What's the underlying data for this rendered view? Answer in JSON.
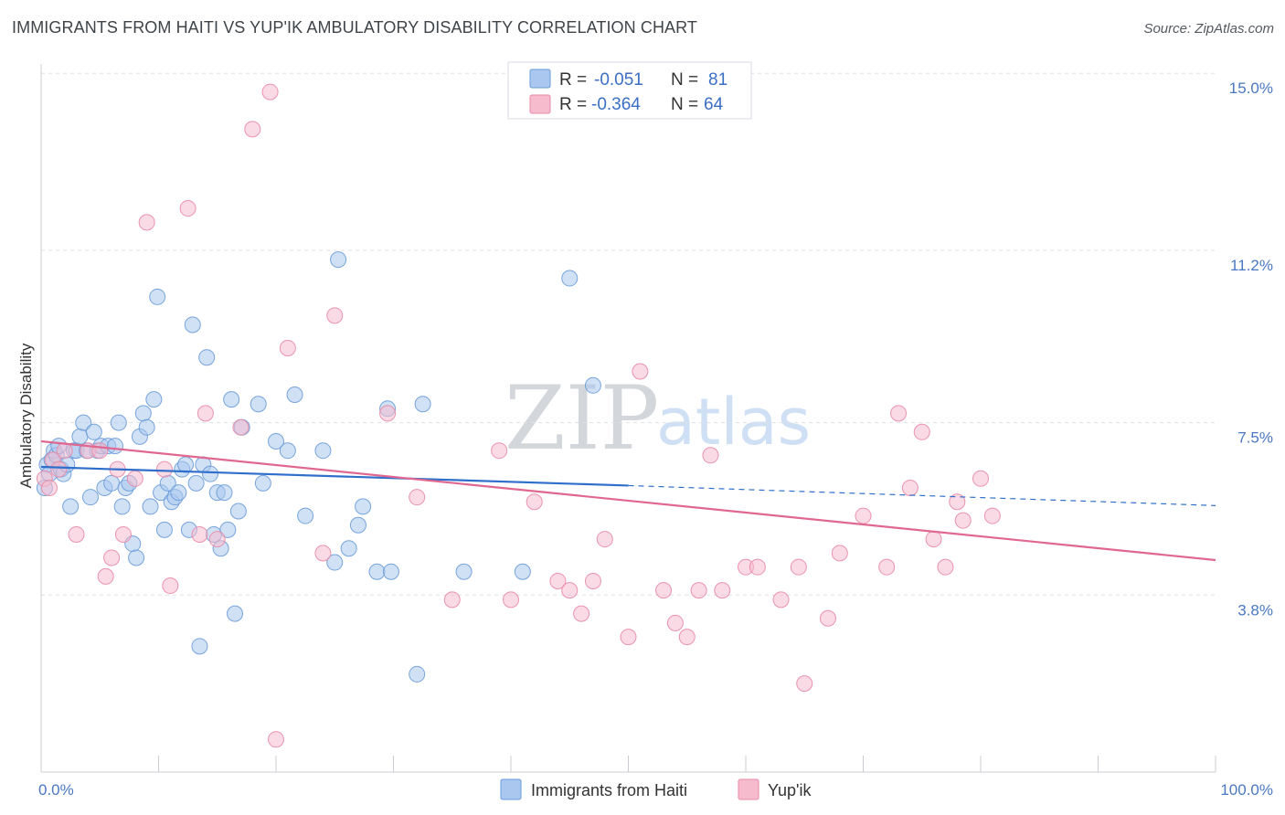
{
  "header": {
    "title": "IMMIGRANTS FROM HAITI VS YUP'IK AMBULATORY DISABILITY CORRELATION CHART",
    "source": "Source: ZipAtlas.com"
  },
  "watermark": {
    "zip": "ZIP",
    "atlas": "atlas"
  },
  "colors": {
    "blue_fill": "#aac8ef",
    "blue_stroke": "#6a9bd8",
    "blue_line": "#2f6fcb",
    "pink_fill": "#f6bccd",
    "pink_stroke": "#e88aa6",
    "pink_line": "#e06890",
    "grid": "#dde1e6",
    "axis_label": "#4a78c2"
  },
  "legend": {
    "rows": [
      {
        "r_label": "R = ",
        "r_value": "-0.051",
        "n_label": "N = ",
        "n_value": "81"
      },
      {
        "r_label": "R = ",
        "r_value": "-0.364",
        "n_label": "N = ",
        "n_value": "64"
      }
    ]
  },
  "chart_data": {
    "type": "scatter",
    "title": "IMMIGRANTS FROM HAITI VS YUP'IK AMBULATORY DISABILITY CORRELATION CHART",
    "xlabel": "",
    "ylabel": "Ambulatory Disability",
    "xlim": [
      0,
      100
    ],
    "ylim": [
      0,
      15.2
    ],
    "x_tick_labels": [
      "0.0%",
      "100.0%"
    ],
    "y_ticks": [
      {
        "value": 3.8,
        "label": "3.8%"
      },
      {
        "value": 7.5,
        "label": "7.5%"
      },
      {
        "value": 11.2,
        "label": "11.2%"
      },
      {
        "value": 15.0,
        "label": "15.0%"
      }
    ],
    "grid": true,
    "legend_position": "top-center",
    "series": [
      {
        "name": "Immigrants from Haiti",
        "color": "#aac8ef",
        "trend": {
          "x_start": 0,
          "y_start": 6.55,
          "x_end": 50,
          "y_end": 6.15,
          "dashed_to_x": 100,
          "dashed_to_y": 5.72
        },
        "points": [
          [
            0.3,
            6.1
          ],
          [
            0.5,
            6.6
          ],
          [
            0.7,
            6.4
          ],
          [
            0.9,
            6.7
          ],
          [
            1.1,
            6.9
          ],
          [
            1.3,
            6.8
          ],
          [
            1.5,
            7.0
          ],
          [
            1.7,
            6.5
          ],
          [
            1.9,
            6.4
          ],
          [
            2.2,
            6.6
          ],
          [
            2.5,
            5.7
          ],
          [
            2.8,
            6.9
          ],
          [
            3.0,
            6.9
          ],
          [
            3.3,
            7.2
          ],
          [
            3.6,
            7.5
          ],
          [
            3.9,
            6.9
          ],
          [
            4.2,
            5.9
          ],
          [
            4.5,
            7.3
          ],
          [
            4.8,
            6.9
          ],
          [
            5.1,
            7.0
          ],
          [
            5.4,
            6.1
          ],
          [
            5.7,
            7.0
          ],
          [
            6.0,
            6.2
          ],
          [
            6.3,
            7.0
          ],
          [
            6.6,
            7.5
          ],
          [
            6.9,
            5.7
          ],
          [
            7.2,
            6.1
          ],
          [
            7.5,
            6.2
          ],
          [
            7.8,
            4.9
          ],
          [
            8.1,
            4.6
          ],
          [
            8.4,
            7.2
          ],
          [
            8.7,
            7.7
          ],
          [
            9.0,
            7.4
          ],
          [
            9.3,
            5.7
          ],
          [
            9.6,
            8.0
          ],
          [
            9.9,
            10.2
          ],
          [
            10.2,
            6.0
          ],
          [
            10.5,
            5.2
          ],
          [
            10.8,
            6.2
          ],
          [
            11.1,
            5.8
          ],
          [
            11.4,
            5.9
          ],
          [
            11.7,
            6.0
          ],
          [
            12.0,
            6.5
          ],
          [
            12.3,
            6.6
          ],
          [
            12.6,
            5.2
          ],
          [
            12.9,
            9.6
          ],
          [
            13.2,
            6.2
          ],
          [
            13.5,
            2.7
          ],
          [
            13.8,
            6.6
          ],
          [
            14.1,
            8.9
          ],
          [
            14.4,
            6.4
          ],
          [
            14.7,
            5.1
          ],
          [
            15.0,
            6.0
          ],
          [
            15.3,
            4.8
          ],
          [
            15.6,
            6.0
          ],
          [
            15.9,
            5.2
          ],
          [
            16.2,
            8.0
          ],
          [
            16.5,
            3.4
          ],
          [
            16.8,
            5.6
          ],
          [
            17.1,
            7.4
          ],
          [
            18.5,
            7.9
          ],
          [
            18.9,
            6.2
          ],
          [
            20.0,
            7.1
          ],
          [
            21.0,
            6.9
          ],
          [
            21.6,
            8.1
          ],
          [
            22.5,
            5.5
          ],
          [
            24.0,
            6.9
          ],
          [
            25.0,
            4.5
          ],
          [
            25.3,
            11.0
          ],
          [
            26.2,
            4.8
          ],
          [
            29.5,
            7.8
          ],
          [
            32.5,
            7.9
          ],
          [
            27.0,
            5.3
          ],
          [
            27.4,
            5.7
          ],
          [
            28.6,
            4.3
          ],
          [
            29.8,
            4.3
          ],
          [
            32.0,
            2.1
          ],
          [
            36.0,
            4.3
          ],
          [
            41.0,
            4.3
          ],
          [
            45.0,
            10.6
          ],
          [
            47.0,
            8.3
          ]
        ]
      },
      {
        "name": "Yup'ik",
        "color": "#f6bccd",
        "trend": {
          "x_start": 0,
          "y_start": 7.1,
          "x_end": 100,
          "y_end": 4.55
        },
        "points": [
          [
            0.3,
            6.3
          ],
          [
            0.7,
            6.1
          ],
          [
            1.0,
            6.7
          ],
          [
            1.5,
            6.5
          ],
          [
            2.0,
            6.9
          ],
          [
            3.0,
            5.1
          ],
          [
            4.0,
            6.9
          ],
          [
            5.0,
            6.9
          ],
          [
            5.5,
            4.2
          ],
          [
            6.0,
            4.6
          ],
          [
            6.5,
            6.5
          ],
          [
            7.0,
            5.1
          ],
          [
            8.0,
            6.3
          ],
          [
            9.0,
            11.8
          ],
          [
            10.5,
            6.5
          ],
          [
            11.0,
            4.0
          ],
          [
            12.5,
            12.1
          ],
          [
            13.5,
            5.1
          ],
          [
            14.0,
            7.7
          ],
          [
            15.0,
            5.0
          ],
          [
            17.0,
            7.4
          ],
          [
            18.0,
            13.8
          ],
          [
            19.5,
            14.6
          ],
          [
            20.0,
            0.7
          ],
          [
            21.0,
            9.1
          ],
          [
            24.0,
            4.7
          ],
          [
            25.0,
            9.8
          ],
          [
            29.5,
            7.7
          ],
          [
            32.0,
            5.9
          ],
          [
            35.0,
            3.7
          ],
          [
            39.0,
            6.9
          ],
          [
            40.0,
            3.7
          ],
          [
            42.0,
            5.8
          ],
          [
            44.0,
            4.1
          ],
          [
            45.0,
            3.9
          ],
          [
            46.0,
            3.4
          ],
          [
            47.0,
            4.1
          ],
          [
            48.0,
            5.0
          ],
          [
            50.0,
            2.9
          ],
          [
            51.0,
            8.6
          ],
          [
            53.0,
            3.9
          ],
          [
            54.0,
            3.2
          ],
          [
            55.0,
            2.9
          ],
          [
            56.0,
            3.9
          ],
          [
            57.0,
            6.8
          ],
          [
            58.0,
            3.9
          ],
          [
            60.0,
            4.4
          ],
          [
            61.0,
            4.4
          ],
          [
            63.0,
            3.7
          ],
          [
            64.5,
            4.4
          ],
          [
            65.0,
            1.9
          ],
          [
            67.0,
            3.3
          ],
          [
            68.0,
            4.7
          ],
          [
            70.0,
            5.5
          ],
          [
            72.0,
            4.4
          ],
          [
            73.0,
            7.7
          ],
          [
            74.0,
            6.1
          ],
          [
            75.0,
            7.3
          ],
          [
            76.0,
            5.0
          ],
          [
            77.0,
            4.4
          ],
          [
            78.0,
            5.8
          ],
          [
            78.5,
            5.4
          ],
          [
            80.0,
            6.3
          ],
          [
            81.0,
            5.5
          ]
        ]
      }
    ]
  },
  "bottom_legend": {
    "items": [
      {
        "label": "Immigrants from Haiti"
      },
      {
        "label": "Yup'ik"
      }
    ]
  }
}
